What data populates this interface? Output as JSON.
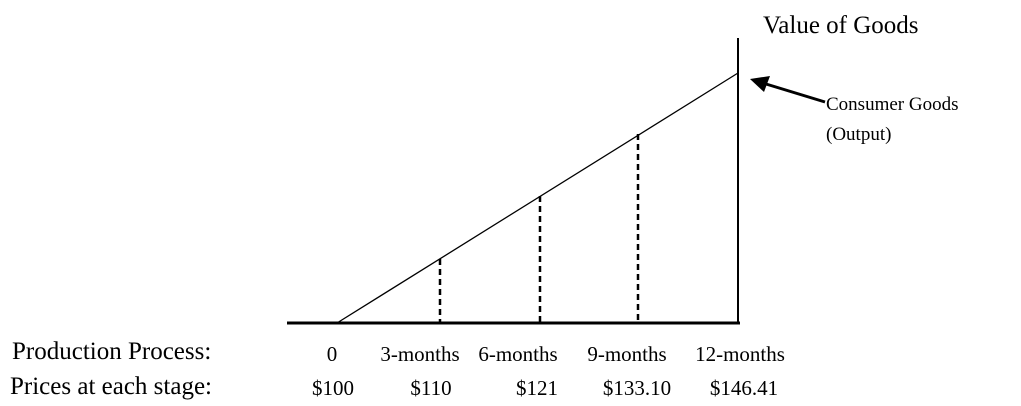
{
  "y_axis_label": "Value of Goods",
  "callout": {
    "line1": "Consumer Goods",
    "line2": "(Output)"
  },
  "rows": {
    "process_label": "Production Process:",
    "prices_label": "Prices at each stage:"
  },
  "stages": [
    {
      "time": "0",
      "price": "$100"
    },
    {
      "time": "3-months",
      "price": "$110"
    },
    {
      "time": "6-months",
      "price": "$121"
    },
    {
      "time": "9-months",
      "price": "$133.10"
    },
    {
      "time": "12-months",
      "price": "$146.41"
    }
  ]
}
